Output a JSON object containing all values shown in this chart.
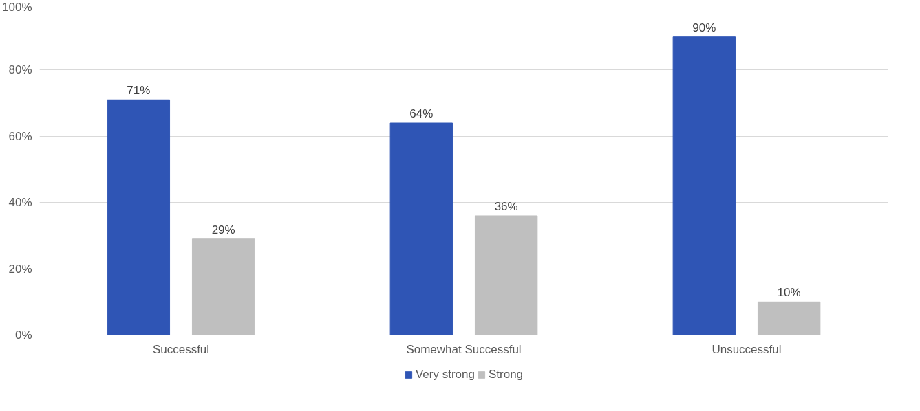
{
  "chart_data": {
    "type": "bar",
    "categories": [
      "Successful",
      "Somewhat Successful",
      "Unsuccessful"
    ],
    "series": [
      {
        "name": "Very strong",
        "color": "#2f55b5",
        "values": [
          71,
          64,
          90
        ]
      },
      {
        "name": "Strong",
        "color": "#bfbfbf",
        "values": [
          29,
          36,
          10
        ]
      }
    ],
    "ylim": [
      0,
      100
    ],
    "yticks": [
      {
        "value": 0,
        "label": "0%"
      },
      {
        "value": 20,
        "label": "20%"
      },
      {
        "value": 40,
        "label": "40%"
      },
      {
        "value": 60,
        "label": "60%"
      },
      {
        "value": 80,
        "label": "80%"
      },
      {
        "value": 100,
        "label": "100%"
      }
    ],
    "value_labels": [
      [
        "71%",
        "64%",
        "90%"
      ],
      [
        "29%",
        "36%",
        "10%"
      ]
    ],
    "grid": "y",
    "legend": "bottom"
  }
}
